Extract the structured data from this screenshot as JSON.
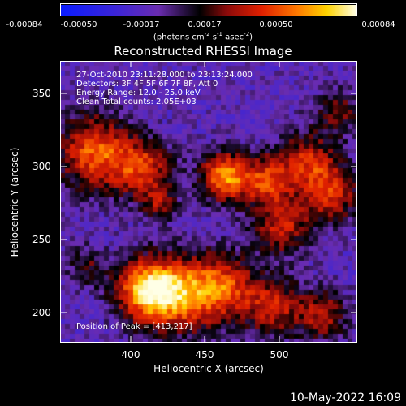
{
  "colorbar": {
    "ticks": [
      "-0.00084",
      "-0.00050",
      "-0.00017",
      "0.00017",
      "0.00050",
      "0.00084"
    ],
    "units_prefix": "(photons cm",
    "units_exp1": "-2",
    "units_mid": " s",
    "units_exp2": "-1",
    "units_mid2": " asec",
    "units_exp3": "-2",
    "units_suffix": ")"
  },
  "title": "Reconstructed RHESSI Image",
  "overlay": {
    "line1": "27-Oct-2010 23:11:28.000 to 23:13:24.000",
    "line2": "Detectors: 3F 4F 5F 6F 7F 8F, Att 0",
    "line3": "Energy Range: 12.0 - 25.0 keV",
    "line4": "Clean     Total counts: 2.05E+03",
    "peak": "Position of Peak = [413,217]"
  },
  "axes": {
    "xlabel": "Heliocentric X (arcsec)",
    "ylabel": "Heliocentric Y (arcsec)",
    "xticks": [
      "400",
      "450",
      "500"
    ],
    "yticks": [
      "350",
      "300",
      "250",
      "200"
    ]
  },
  "footer": "10-May-2022 16:09",
  "colors": {
    "background": "#000000",
    "text": "#ffffff"
  }
}
